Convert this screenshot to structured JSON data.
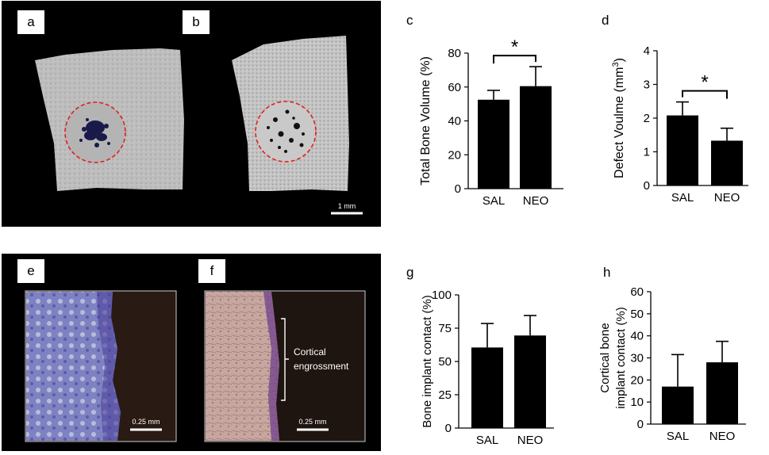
{
  "panels": {
    "a": "a",
    "b": "b",
    "c": "c",
    "d": "d",
    "e": "e",
    "f": "f",
    "g": "g",
    "h": "h"
  },
  "scalebars": {
    "micro_ct": "1 mm",
    "histo_e": "0.25 mm",
    "histo_f": "0.25 mm"
  },
  "annotation": {
    "line1": "Cortical",
    "line2": "engrossment"
  },
  "colors": {
    "bar": "#000000",
    "circle": "#e0201e",
    "bone": "#bcbcbc",
    "histo_blue": "#6a6fb6",
    "histo_pink": "#caa4a4"
  },
  "chart_data": [
    {
      "id": "c",
      "type": "bar",
      "categories": [
        "SAL",
        "NEO"
      ],
      "values": [
        52.5,
        60.5
      ],
      "errors": [
        5.5,
        11.5
      ],
      "ylabel": "Total Bone Volume (%)",
      "ylim": [
        0,
        80
      ],
      "yticks": [
        "0",
        "20",
        "40",
        "60",
        "80"
      ],
      "significance": "*"
    },
    {
      "id": "d",
      "type": "bar",
      "categories": [
        "SAL",
        "NEO"
      ],
      "values": [
        2.08,
        1.33
      ],
      "errors": [
        0.4,
        0.37
      ],
      "ylabel": "Defect Voulme (mm",
      "ylabel_sup": "3",
      "ylabel_tail": ")",
      "ylim": [
        0,
        4
      ],
      "yticks": [
        "0",
        "1",
        "2",
        "3",
        "4"
      ],
      "significance": "*"
    },
    {
      "id": "g",
      "type": "bar",
      "categories": [
        "SAL",
        "NEO"
      ],
      "values": [
        60.5,
        69.5
      ],
      "errors": [
        18,
        15
      ],
      "ylabel": "Bone implant contact (%)",
      "ylim": [
        0,
        100
      ],
      "yticks": [
        "0",
        "25",
        "50",
        "75",
        "100"
      ]
    },
    {
      "id": "h",
      "type": "bar",
      "categories": [
        "SAL",
        "NEO"
      ],
      "values": [
        17,
        28
      ],
      "errors": [
        14.5,
        9.5
      ],
      "ylabel_lines": [
        "Cortical bone",
        "implant contact (%)"
      ],
      "ylim": [
        0,
        60
      ],
      "yticks": [
        "0",
        "10",
        "20",
        "30",
        "40",
        "50",
        "60"
      ]
    }
  ]
}
